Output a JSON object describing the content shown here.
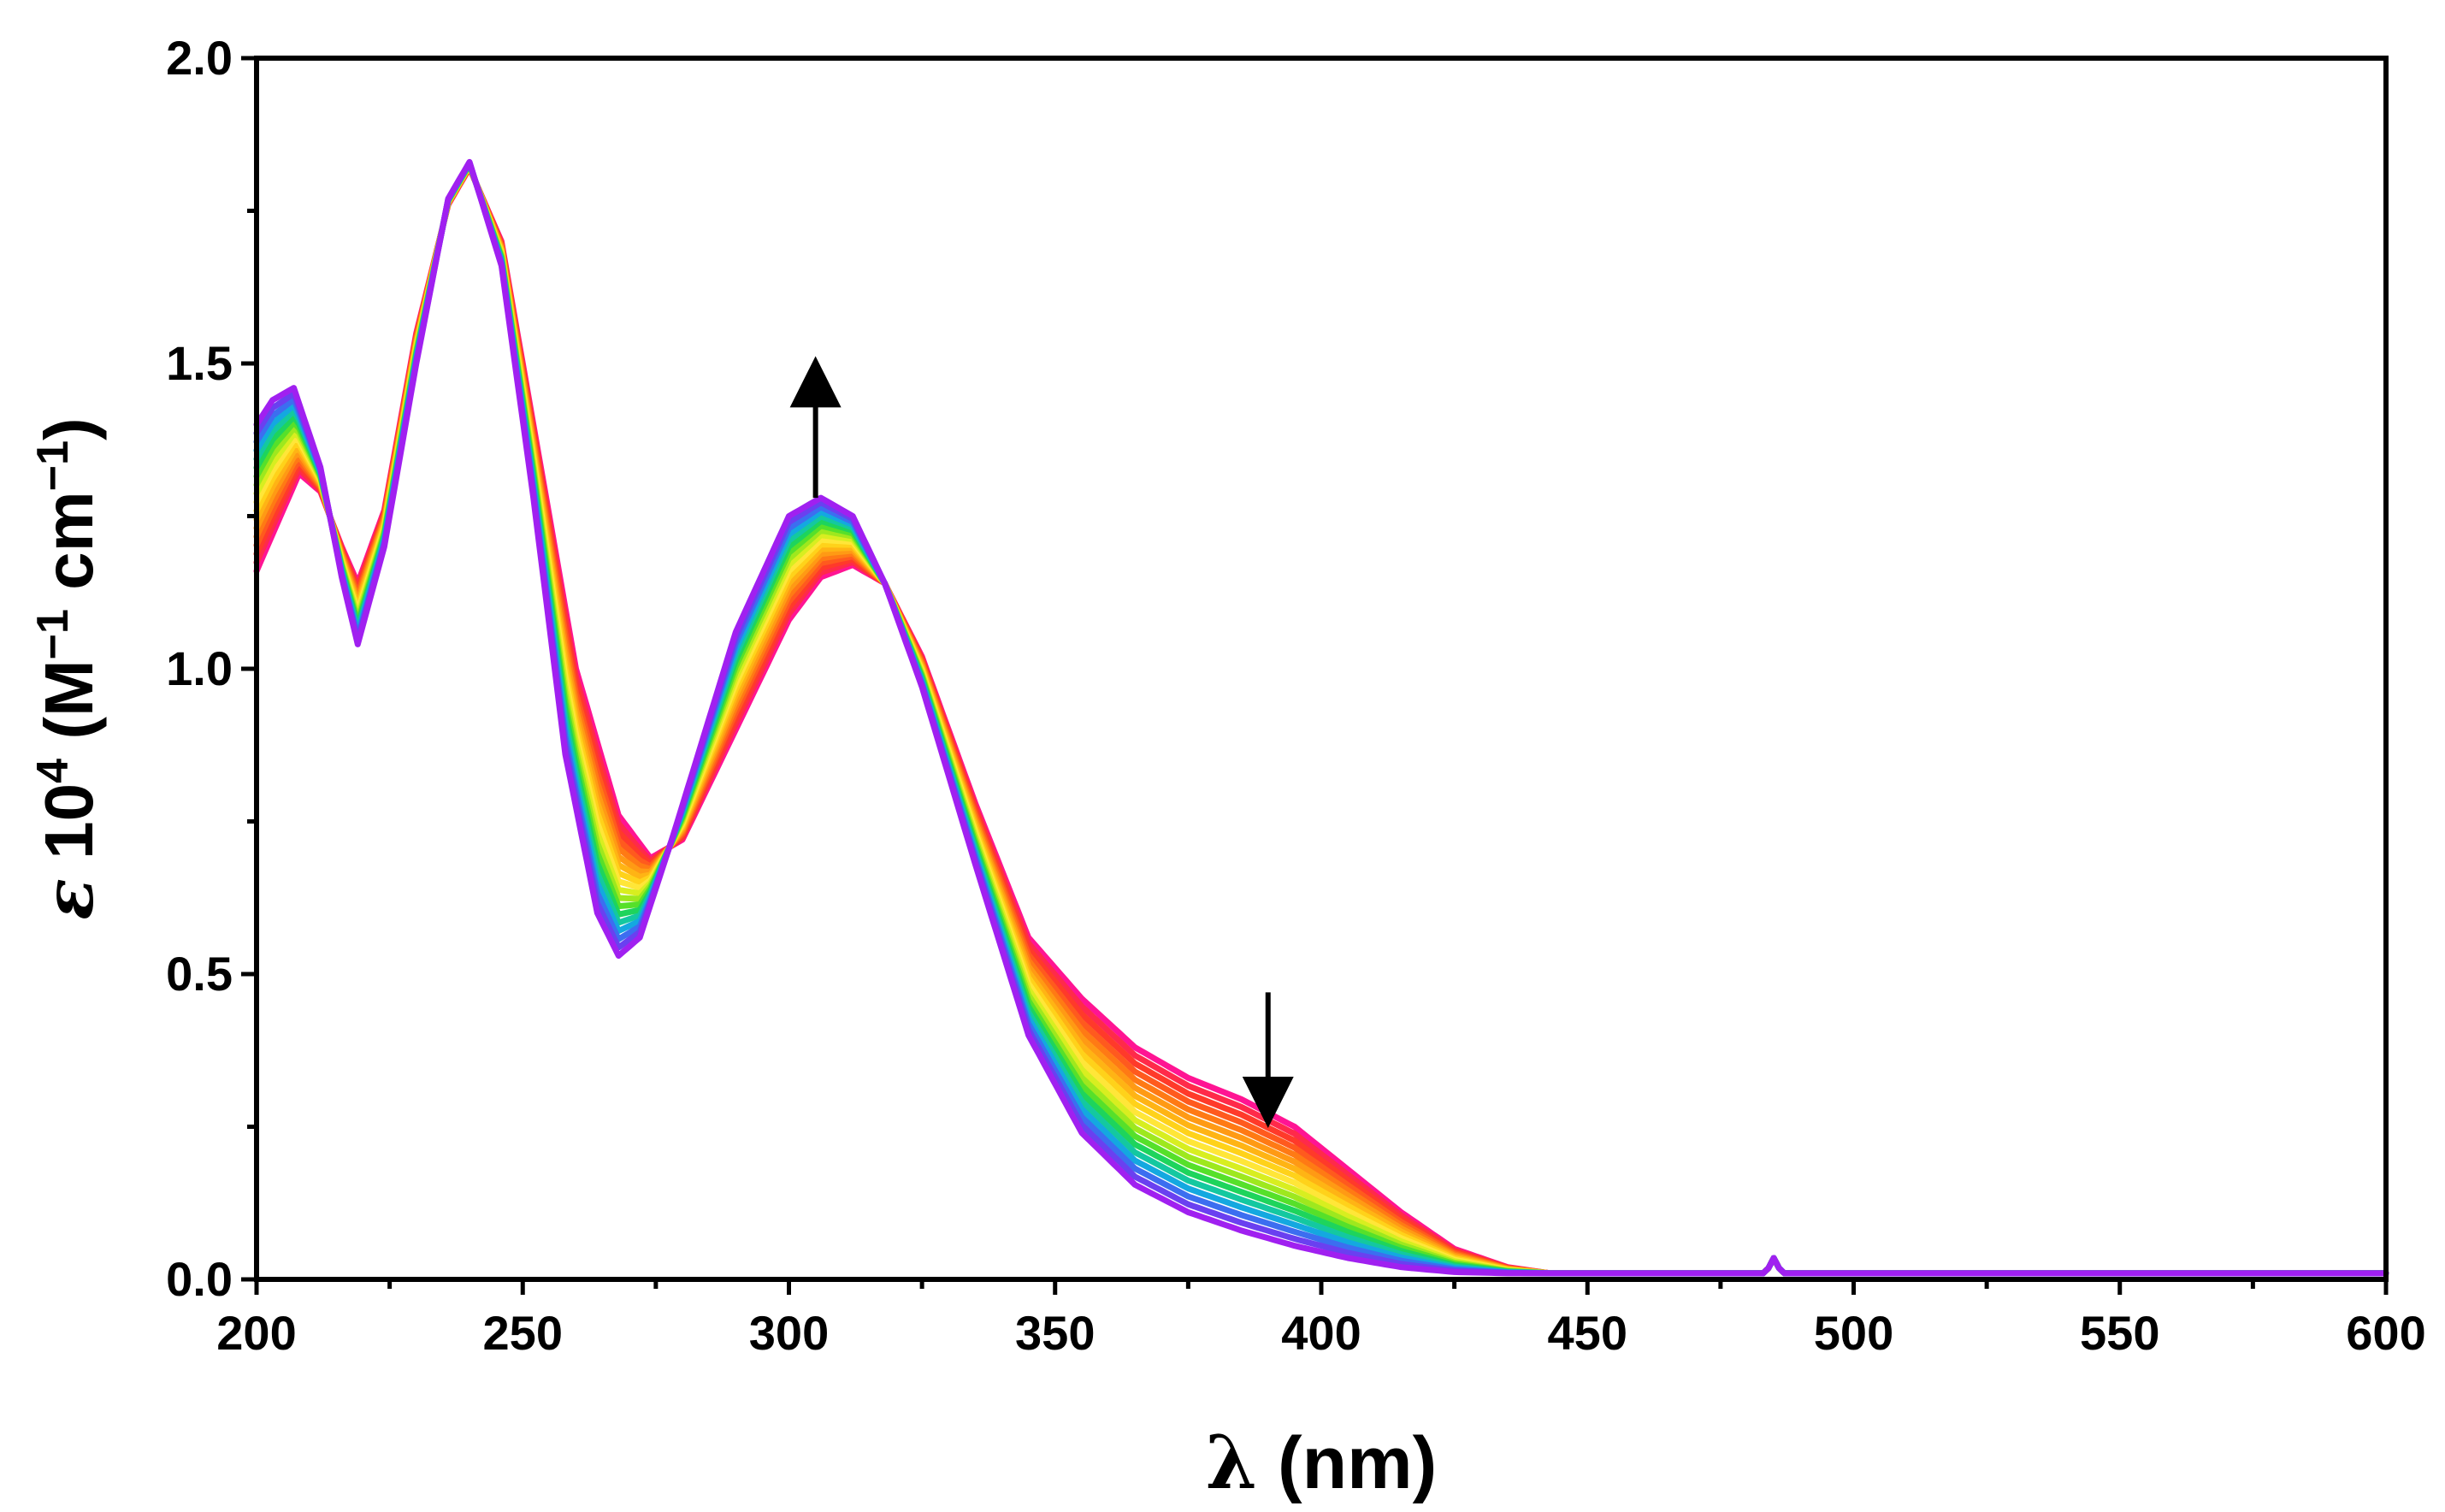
{
  "chart_data": {
    "type": "line",
    "title": "",
    "xlabel": "λ (nm)",
    "xlabel_parts": {
      "symbol": "λ",
      "rest": " (nm)"
    },
    "ylabel": "ε 10⁴ (M⁻¹ cm⁻¹)",
    "ylabel_parts": {
      "symbol": "ε",
      "base": " 10",
      "exp1": "4",
      "m": " (M",
      "exp2": "−1",
      "cm": " cm",
      "exp3": "−1",
      "close": ")"
    },
    "xlim": [
      200,
      600
    ],
    "ylim": [
      0.0,
      2.0
    ],
    "x_ticks": [
      200,
      250,
      300,
      350,
      400,
      450,
      500,
      550,
      600
    ],
    "x_tick_labels": [
      "200",
      "250",
      "300",
      "350",
      "400",
      "450",
      "500",
      "550",
      "600"
    ],
    "y_ticks": [
      0.0,
      0.5,
      1.0,
      1.5,
      2.0
    ],
    "y_tick_labels": [
      "0.0",
      "0.5",
      "1.0",
      "1.5",
      "2.0"
    ],
    "grid": false,
    "n_series": 18,
    "series_colors": [
      "#ff1493",
      "#ff2a4a",
      "#ff3a2a",
      "#ff5a1e",
      "#ff7a14",
      "#ff9a14",
      "#ffb414",
      "#ffd21a",
      "#ffe638",
      "#d8ee20",
      "#9ee81e",
      "#56e02a",
      "#1ed45c",
      "#14c8a0",
      "#14a8e0",
      "#3c6ef0",
      "#6a40f0",
      "#a020f0"
    ],
    "keypoints": {
      "first": {
        "x": [
          200,
          203,
          208,
          212,
          216,
          219,
          224,
          230,
          236,
          240,
          246,
          252,
          260,
          268,
          274,
          280,
          290,
          300,
          306,
          312,
          318,
          325,
          335,
          345,
          355,
          365,
          375,
          385,
          395,
          405,
          415,
          425,
          435,
          443,
          460,
          500,
          550,
          600
        ],
        "y": [
          1.16,
          1.22,
          1.32,
          1.29,
          1.2,
          1.14,
          1.26,
          1.55,
          1.76,
          1.82,
          1.7,
          1.4,
          1.0,
          0.76,
          0.69,
          0.72,
          0.9,
          1.08,
          1.15,
          1.17,
          1.14,
          1.02,
          0.78,
          0.56,
          0.46,
          0.38,
          0.33,
          0.295,
          0.25,
          0.18,
          0.11,
          0.05,
          0.02,
          0.01,
          0.01,
          0.01,
          0.01,
          0.01
        ]
      },
      "last": {
        "x": [
          200,
          203,
          207,
          212,
          216,
          219,
          224,
          230,
          236,
          240,
          246,
          252,
          258,
          264,
          268,
          272,
          278,
          290,
          300,
          306,
          312,
          318,
          325,
          335,
          345,
          355,
          365,
          375,
          385,
          395,
          405,
          415,
          425,
          435,
          443,
          460,
          500,
          550,
          600
        ],
        "y": [
          1.4,
          1.44,
          1.46,
          1.33,
          1.15,
          1.04,
          1.2,
          1.5,
          1.77,
          1.83,
          1.66,
          1.28,
          0.86,
          0.6,
          0.53,
          0.56,
          0.72,
          1.06,
          1.25,
          1.28,
          1.25,
          1.14,
          0.97,
          0.68,
          0.4,
          0.24,
          0.155,
          0.11,
          0.08,
          0.055,
          0.035,
          0.02,
          0.012,
          0.01,
          0.01,
          0.01,
          0.01,
          0.01,
          0.01
        ]
      }
    },
    "spike": {
      "x": 485,
      "y": 0.025
    },
    "annotations": [
      {
        "type": "arrow",
        "direction": "up",
        "x": 305,
        "y_from": 1.28,
        "y_to": 1.47
      },
      {
        "type": "arrow",
        "direction": "down",
        "x": 390,
        "y_from": 0.47,
        "y_to": 0.29
      }
    ]
  }
}
